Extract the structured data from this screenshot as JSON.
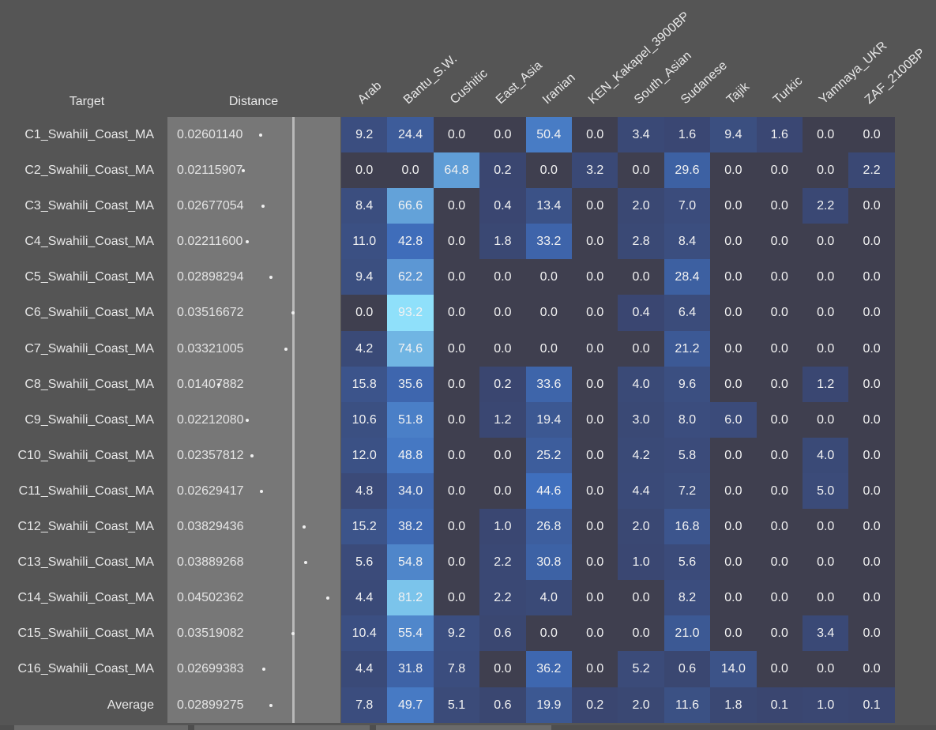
{
  "headers": {
    "target": "Target",
    "distance": "Distance"
  },
  "chart_data": {
    "type": "heatmap",
    "columns": [
      "Arab",
      "Bantu_S.W.",
      "Cushitic",
      "East_Asia",
      "Iranian",
      "KEN_Kakapel_3900BP",
      "South_Asian",
      "Sudanese",
      "Tajik",
      "Turkic",
      "Yamnaya_UKR",
      "ZAF_2100BP"
    ],
    "rows": [
      {
        "target": "C1_Swahili_Coast_MA",
        "distance": "0.02601140",
        "values": [
          "9.2",
          "24.4",
          "0.0",
          "0.0",
          "50.4",
          "0.0",
          "3.4",
          "1.6",
          "9.4",
          "1.6",
          "0.0",
          "0.0"
        ]
      },
      {
        "target": "C2_Swahili_Coast_MA",
        "distance": "0.02115907",
        "values": [
          "0.0",
          "0.0",
          "64.8",
          "0.2",
          "0.0",
          "3.2",
          "0.0",
          "29.6",
          "0.0",
          "0.0",
          "0.0",
          "2.2"
        ]
      },
      {
        "target": "C3_Swahili_Coast_MA",
        "distance": "0.02677054",
        "values": [
          "8.4",
          "66.6",
          "0.0",
          "0.4",
          "13.4",
          "0.0",
          "2.0",
          "7.0",
          "0.0",
          "0.0",
          "2.2",
          "0.0"
        ]
      },
      {
        "target": "C4_Swahili_Coast_MA",
        "distance": "0.02211600",
        "values": [
          "11.0",
          "42.8",
          "0.0",
          "1.8",
          "33.2",
          "0.0",
          "2.8",
          "8.4",
          "0.0",
          "0.0",
          "0.0",
          "0.0"
        ]
      },
      {
        "target": "C5_Swahili_Coast_MA",
        "distance": "0.02898294",
        "values": [
          "9.4",
          "62.2",
          "0.0",
          "0.0",
          "0.0",
          "0.0",
          "0.0",
          "28.4",
          "0.0",
          "0.0",
          "0.0",
          "0.0"
        ]
      },
      {
        "target": "C6_Swahili_Coast_MA",
        "distance": "0.03516672",
        "values": [
          "0.0",
          "93.2",
          "0.0",
          "0.0",
          "0.0",
          "0.0",
          "0.4",
          "6.4",
          "0.0",
          "0.0",
          "0.0",
          "0.0"
        ]
      },
      {
        "target": "C7_Swahili_Coast_MA",
        "distance": "0.03321005",
        "values": [
          "4.2",
          "74.6",
          "0.0",
          "0.0",
          "0.0",
          "0.0",
          "0.0",
          "21.2",
          "0.0",
          "0.0",
          "0.0",
          "0.0"
        ]
      },
      {
        "target": "C8_Swahili_Coast_MA",
        "distance": "0.01407882",
        "values": [
          "15.8",
          "35.6",
          "0.0",
          "0.2",
          "33.6",
          "0.0",
          "4.0",
          "9.6",
          "0.0",
          "0.0",
          "1.2",
          "0.0"
        ]
      },
      {
        "target": "C9_Swahili_Coast_MA",
        "distance": "0.02212080",
        "values": [
          "10.6",
          "51.8",
          "0.0",
          "1.2",
          "19.4",
          "0.0",
          "3.0",
          "8.0",
          "6.0",
          "0.0",
          "0.0",
          "0.0"
        ]
      },
      {
        "target": "C10_Swahili_Coast_MA",
        "distance": "0.02357812",
        "values": [
          "12.0",
          "48.8",
          "0.0",
          "0.0",
          "25.2",
          "0.0",
          "4.2",
          "5.8",
          "0.0",
          "0.0",
          "4.0",
          "0.0"
        ]
      },
      {
        "target": "C11_Swahili_Coast_MA",
        "distance": "0.02629417",
        "values": [
          "4.8",
          "34.0",
          "0.0",
          "0.0",
          "44.6",
          "0.0",
          "4.4",
          "7.2",
          "0.0",
          "0.0",
          "5.0",
          "0.0"
        ]
      },
      {
        "target": "C12_Swahili_Coast_MA",
        "distance": "0.03829436",
        "values": [
          "15.2",
          "38.2",
          "0.0",
          "1.0",
          "26.8",
          "0.0",
          "2.0",
          "16.8",
          "0.0",
          "0.0",
          "0.0",
          "0.0"
        ]
      },
      {
        "target": "C13_Swahili_Coast_MA",
        "distance": "0.03889268",
        "values": [
          "5.6",
          "54.8",
          "0.0",
          "2.2",
          "30.8",
          "0.0",
          "1.0",
          "5.6",
          "0.0",
          "0.0",
          "0.0",
          "0.0"
        ]
      },
      {
        "target": "C14_Swahili_Coast_MA",
        "distance": "0.04502362",
        "values": [
          "4.4",
          "81.2",
          "0.0",
          "2.2",
          "4.0",
          "0.0",
          "0.0",
          "8.2",
          "0.0",
          "0.0",
          "0.0",
          "0.0"
        ]
      },
      {
        "target": "C15_Swahili_Coast_MA",
        "distance": "0.03519082",
        "values": [
          "10.4",
          "55.4",
          "9.2",
          "0.6",
          "0.0",
          "0.0",
          "0.0",
          "21.0",
          "0.0",
          "0.0",
          "3.4",
          "0.0"
        ]
      },
      {
        "target": "C16_Swahili_Coast_MA",
        "distance": "0.02699383",
        "values": [
          "4.4",
          "31.8",
          "7.8",
          "0.0",
          "36.2",
          "0.0",
          "5.2",
          "0.6",
          "14.0",
          "0.0",
          "0.0",
          "0.0"
        ]
      },
      {
        "target": "Average",
        "distance": "0.02899275",
        "values": [
          "7.8",
          "49.7",
          "5.1",
          "0.6",
          "19.9",
          "0.2",
          "2.0",
          "11.6",
          "1.8",
          "0.1",
          "1.0",
          "0.1"
        ]
      }
    ],
    "color_scale": {
      "zero": "#3f3f4f",
      "low": "#3a4670",
      "mid": "#3f6fbe",
      "high": "#8fe0fa"
    },
    "distance_bar_color": "#777777",
    "distance_marker_color": "#b8b8b8"
  }
}
